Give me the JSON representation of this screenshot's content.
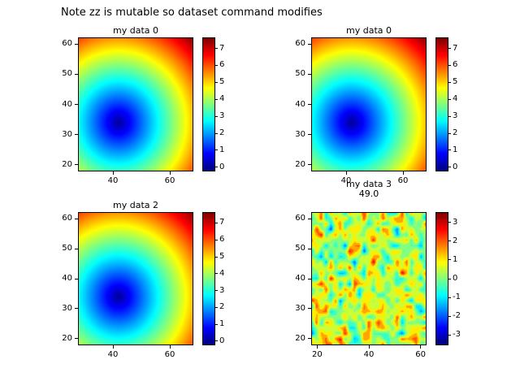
{
  "figure": {
    "title": "Note zz is mutable so dataset command modifies",
    "background": "#ffffff"
  },
  "chart_data": [
    {
      "type": "heatmap",
      "title": "my data 0",
      "colormap": "jet",
      "field": "radial",
      "center": [
        42,
        34
      ],
      "x_range": [
        28,
        68
      ],
      "y_range": [
        18,
        62
      ],
      "x_ticks": [
        40,
        60
      ],
      "y_ticks": [
        20,
        30,
        40,
        50,
        60
      ],
      "value_range": [
        -0.2,
        7.6
      ],
      "colorbar_ticks": [
        0,
        1,
        2,
        3,
        4,
        5,
        6,
        7
      ],
      "legend_position": "right-colorbar"
    },
    {
      "type": "heatmap",
      "title": "my data 0",
      "colormap": "jet",
      "field": "radial",
      "center": [
        42,
        34
      ],
      "x_range": [
        28,
        68
      ],
      "y_range": [
        18,
        62
      ],
      "x_ticks": [
        40,
        60
      ],
      "y_ticks": [
        20,
        30,
        40,
        50,
        60
      ],
      "value_range": [
        -0.2,
        7.6
      ],
      "colorbar_ticks": [
        0,
        1,
        2,
        3,
        4,
        5,
        6,
        7
      ],
      "legend_position": "right-colorbar"
    },
    {
      "type": "heatmap",
      "title": "my data 2",
      "colormap": "jet",
      "field": "radial",
      "center": [
        42,
        34
      ],
      "x_range": [
        28,
        68
      ],
      "y_range": [
        18,
        62
      ],
      "x_ticks": [
        40,
        60
      ],
      "y_ticks": [
        20,
        30,
        40,
        50,
        60
      ],
      "value_range": [
        -0.2,
        7.6
      ],
      "colorbar_ticks": [
        0,
        1,
        2,
        3,
        4,
        5,
        6,
        7
      ],
      "legend_position": "right-colorbar"
    },
    {
      "type": "heatmap",
      "title": "my data 3",
      "annotation": "49.0",
      "colormap": "jet",
      "field": "noise",
      "x_range": [
        18,
        62
      ],
      "y_range": [
        18,
        62
      ],
      "x_ticks": [
        20,
        40,
        60
      ],
      "y_ticks": [
        20,
        30,
        40,
        50,
        60
      ],
      "value_range": [
        -3.5,
        3.5
      ],
      "colorbar_ticks": [
        -3,
        -2,
        -1,
        0,
        1,
        2,
        3
      ],
      "legend_position": "right-colorbar"
    }
  ]
}
